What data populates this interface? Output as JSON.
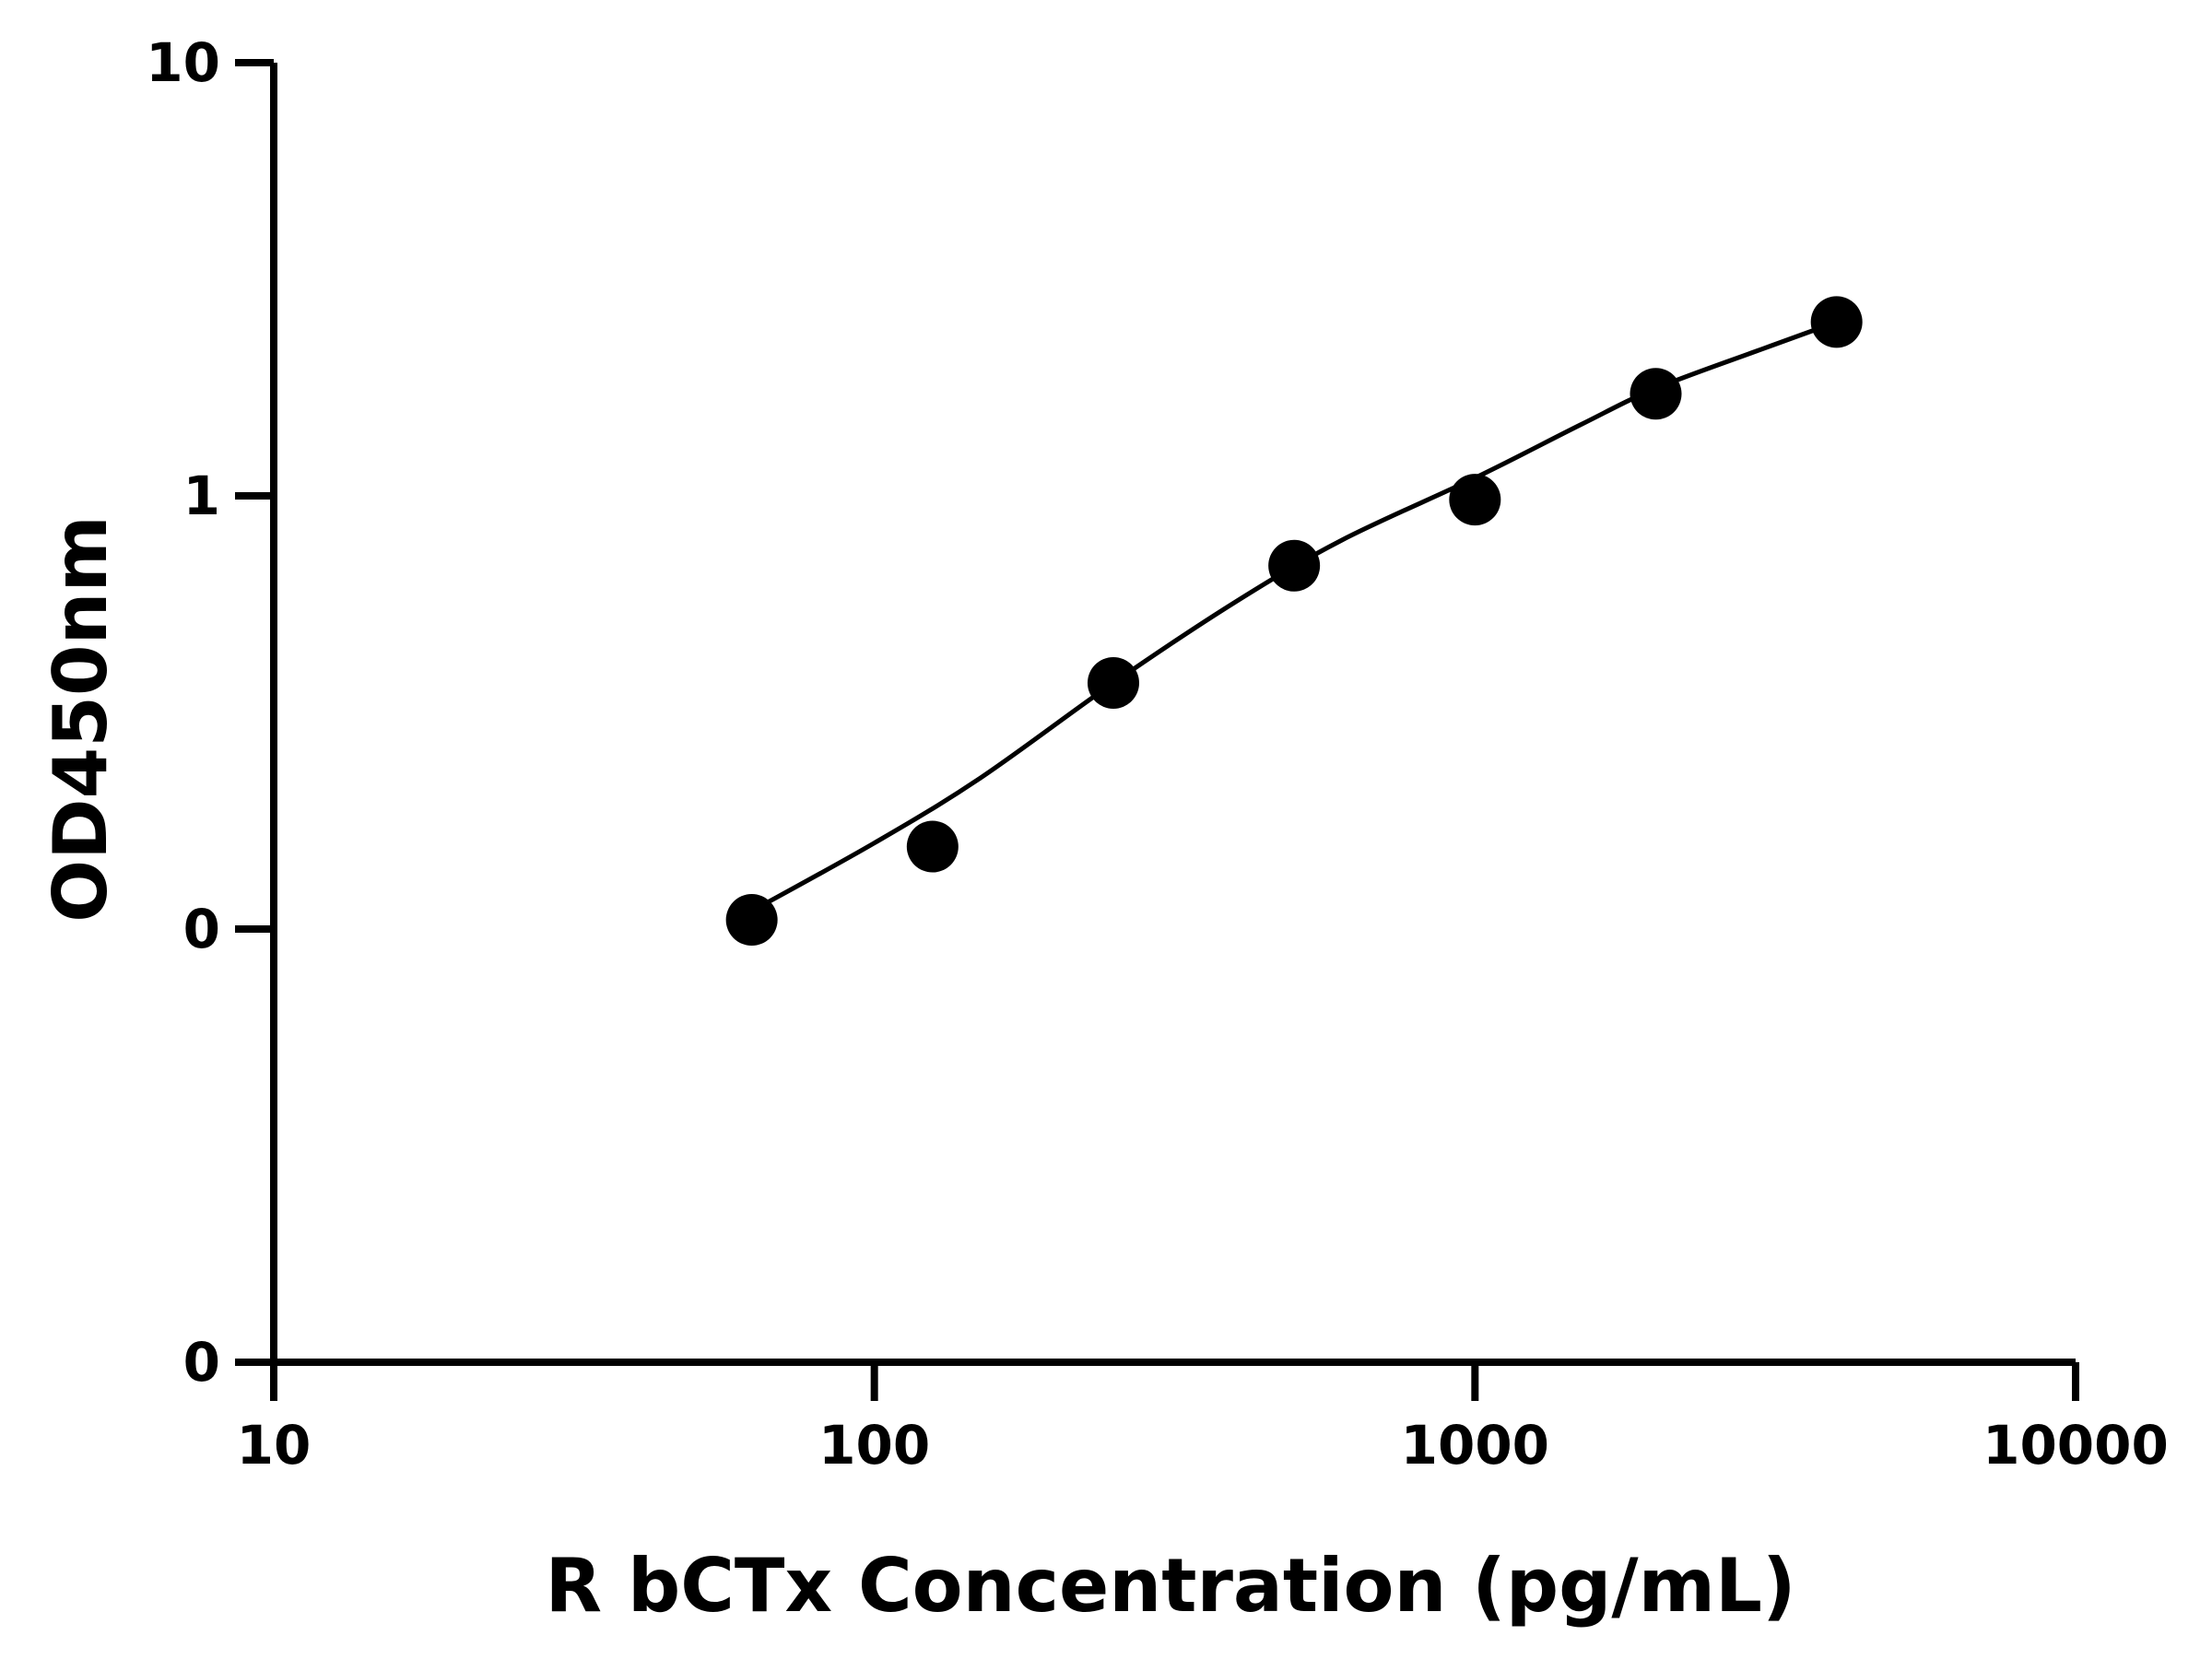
{
  "chart_data": {
    "type": "scatter",
    "xlabel": "R bCTx Concentration (pg/mL)",
    "ylabel": "OD450nm",
    "x_scale": "log",
    "y_scale": "log",
    "xlim": [
      10,
      10000
    ],
    "x_ticks": [
      10,
      100,
      1000,
      10000
    ],
    "x_tick_labels": [
      "10",
      "100",
      "1000",
      "10000"
    ],
    "y_ticks": [
      0.01,
      0.1,
      1,
      10
    ],
    "y_tick_labels": [
      "0",
      "0",
      "1",
      "10"
    ],
    "ylim": [
      0.01,
      10
    ],
    "grid": false,
    "series": [
      {
        "marker": "filled-circle",
        "color": "#000000",
        "x": [
          62.5,
          125,
          250,
          500,
          1000,
          2000,
          4000
        ],
        "y": [
          0.105,
          0.155,
          0.37,
          0.69,
          0.98,
          1.72,
          2.52
        ]
      }
    ],
    "fit_curve": {
      "color": "#000000",
      "x": [
        62.5,
        100,
        150,
        250,
        400,
        600,
        1000,
        1500,
        2000,
        3000,
        4000
      ],
      "y": [
        0.11,
        0.158,
        0.223,
        0.37,
        0.57,
        0.79,
        1.1,
        1.46,
        1.77,
        2.18,
        2.52
      ]
    }
  }
}
